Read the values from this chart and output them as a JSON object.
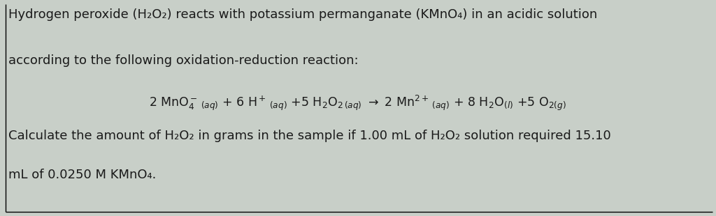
{
  "bg_color": "#c8cfc8",
  "text_color": "#1a1a1a",
  "line1": "Hydrogen peroxide (H₂O₂) reacts with potassium permanganate (KMnO₄) in an acidic solution",
  "line2": "according to the following oxidation-reduction reaction:",
  "line4": "Calculate the amount of H₂O₂ in grams in the sample if 1.00 mL of H₂O₂ solution required 15.10",
  "line5": "mL of 0.0250 M KMnO₄.",
  "font_size_main": 13.0,
  "font_size_eq": 12.5,
  "font_family": "DejaVu Sans"
}
